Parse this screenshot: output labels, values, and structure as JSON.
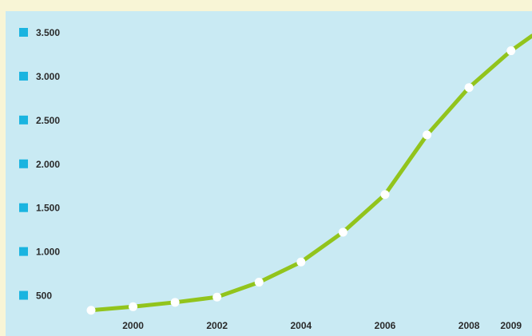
{
  "colors": {
    "frame_background": "#f8f5d6",
    "plot_background": "#c9eaf3",
    "line": "#92c41c",
    "marker": "#ffffff",
    "tick_bullet": "#1ab4e0",
    "text": "#2a2a2a"
  },
  "chart_data": {
    "type": "line",
    "title": "",
    "xlabel": "",
    "ylabel": "",
    "grid": false,
    "legend": "none",
    "xlim": [
      1999,
      2009.5
    ],
    "ylim": [
      300,
      3550
    ],
    "y_ticks": [
      {
        "value": 500,
        "label": "500"
      },
      {
        "value": 1000,
        "label": "1.000"
      },
      {
        "value": 1500,
        "label": "1.500"
      },
      {
        "value": 2000,
        "label": "2.000"
      },
      {
        "value": 2500,
        "label": "2.500"
      },
      {
        "value": 3000,
        "label": "3.000"
      },
      {
        "value": 3500,
        "label": "3.500"
      }
    ],
    "x_ticks": [
      {
        "value": 2000,
        "label": "2000"
      },
      {
        "value": 2002,
        "label": "2002"
      },
      {
        "value": 2004,
        "label": "2004"
      },
      {
        "value": 2006,
        "label": "2006"
      },
      {
        "value": 2008,
        "label": "2008"
      },
      {
        "value": 2009,
        "label": "2009"
      }
    ],
    "series": [
      {
        "x": [
          1999,
          2000,
          2001,
          2002,
          2003,
          2004,
          2005,
          2006,
          2007,
          2008,
          2009
        ],
        "y": [
          330,
          370,
          420,
          480,
          650,
          880,
          1220,
          1650,
          2330,
          2870,
          3290
        ],
        "continues_to": {
          "x": 2009.5,
          "y": 3460
        }
      }
    ]
  }
}
